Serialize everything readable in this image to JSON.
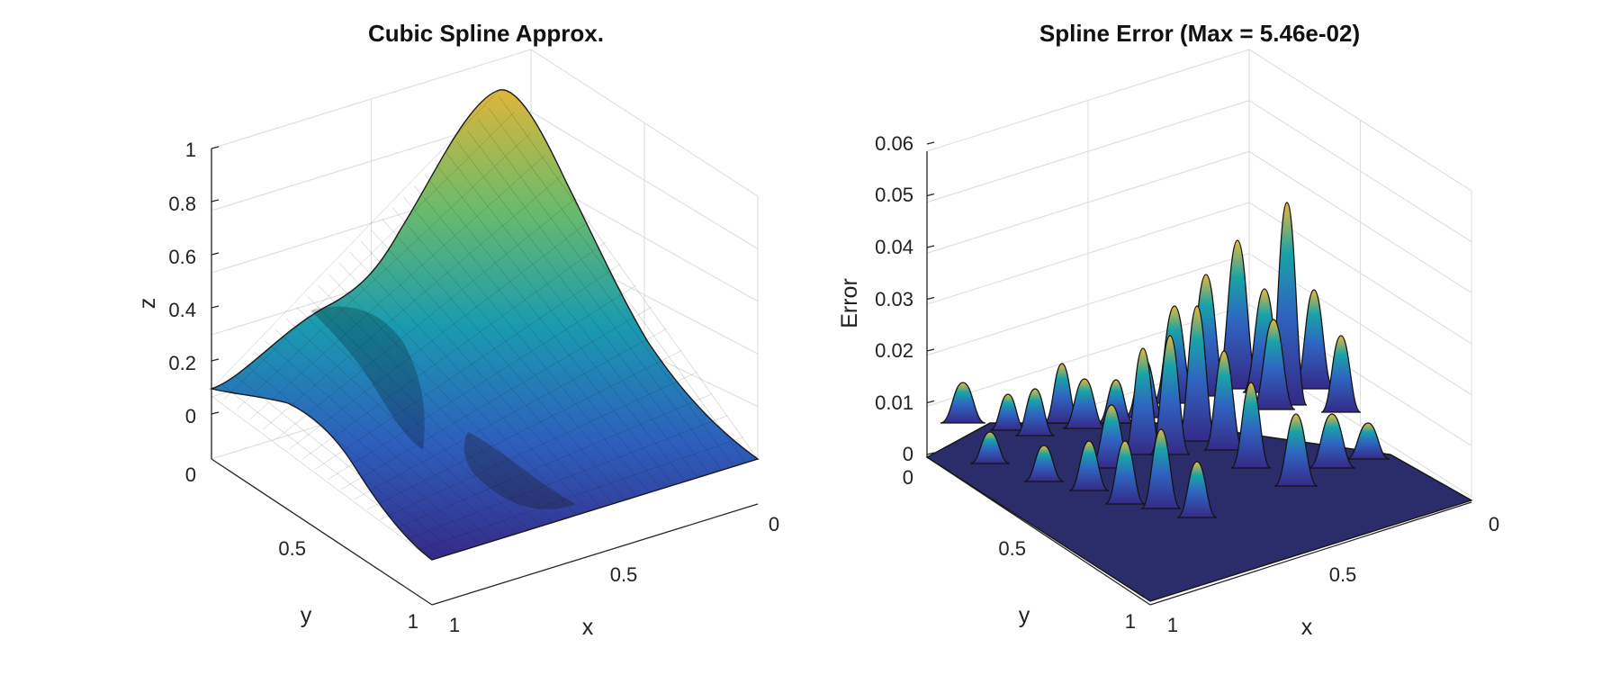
{
  "chart_data": [
    {
      "type": "surface",
      "title": "Cubic Spline Approx.",
      "xlabel": "x",
      "ylabel": "y",
      "zlabel": "z",
      "xlim": [
        0,
        1
      ],
      "ylim": [
        0,
        1
      ],
      "zlim": [
        0,
        1
      ],
      "x_ticks": [
        "0",
        "0.5",
        "1"
      ],
      "y_ticks": [
        "0",
        "0.5",
        "1"
      ],
      "z_ticks": [
        "0",
        "0.2",
        "0.4",
        "0.6",
        "0.8",
        "1"
      ],
      "grid": true,
      "colormap": "parula",
      "surface_peaks": [
        {
          "x": 0.2,
          "y": 0.25,
          "z": 1.0
        },
        {
          "x": 0.8,
          "y": 0.5,
          "z": 0.42
        }
      ]
    },
    {
      "type": "surface",
      "title": "Spline Error (Max = 5.46e-02)",
      "xlabel": "x",
      "ylabel": "y",
      "zlabel": "Error",
      "xlim": [
        0,
        1
      ],
      "ylim": [
        0,
        1
      ],
      "zlim": [
        0,
        0.06
      ],
      "x_ticks": [
        "0",
        "0.5",
        "1"
      ],
      "y_ticks": [
        "0",
        "0.5",
        "1"
      ],
      "z_ticks": [
        "0",
        "0.01",
        "0.02",
        "0.03",
        "0.04",
        "0.05",
        "0.06"
      ],
      "grid": true,
      "colormap": "parula",
      "max_error": 0.0546
    }
  ]
}
